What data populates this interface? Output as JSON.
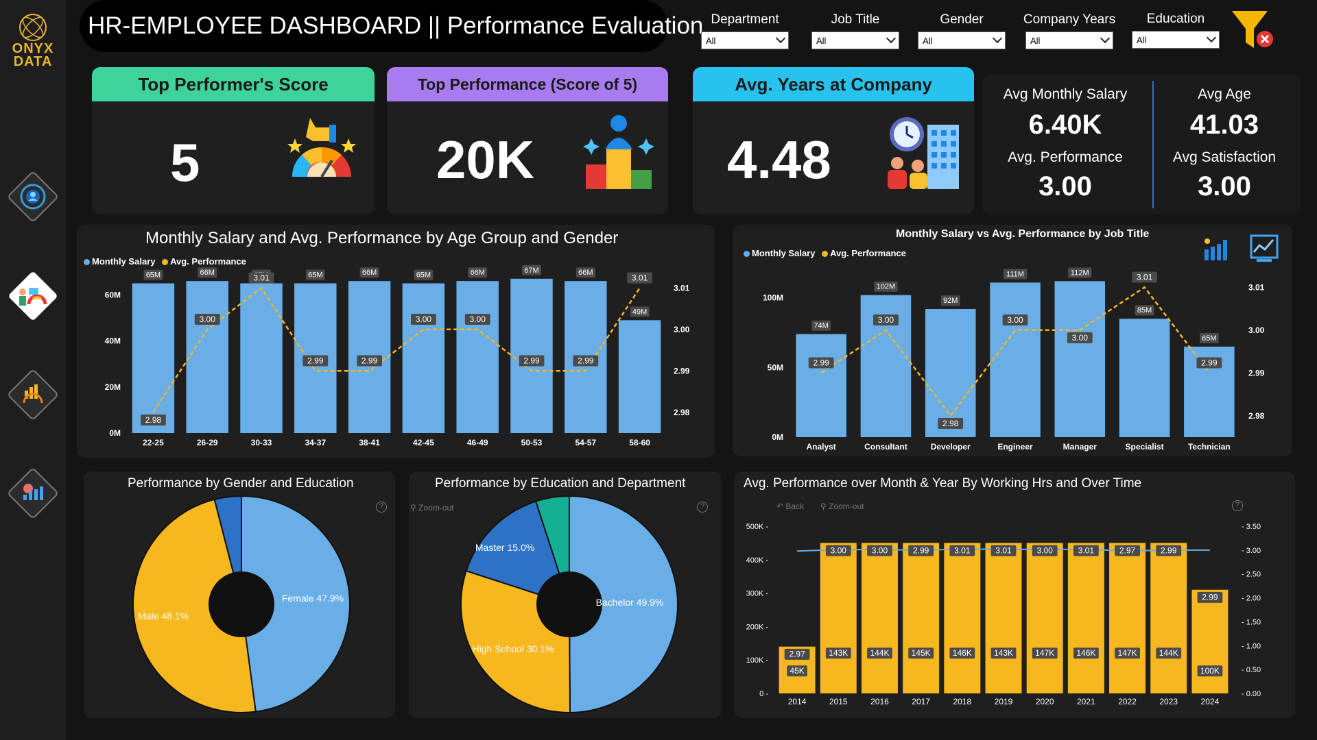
{
  "brand": {
    "line1": "ONYX",
    "line2": "DATA"
  },
  "title": "HR-EMPLOYEE DASHBOARD || Performance Evaluation",
  "filters": [
    {
      "label": "Department",
      "value": "All"
    },
    {
      "label": "Job Title",
      "value": "All"
    },
    {
      "label": "Gender",
      "value": "All"
    },
    {
      "label": "Company Years",
      "value": "All"
    },
    {
      "label": "Education",
      "value": "All"
    }
  ],
  "kpis": {
    "top_score": {
      "label": "Top Performer's Score",
      "value": "5",
      "color": "#3ed39b"
    },
    "top_perf": {
      "label": "Top Performance (Score of 5)",
      "value": "20K",
      "color": "#a87cf0"
    },
    "avg_years": {
      "label": "Avg. Years at Company",
      "value": "4.48",
      "color": "#27c3ee"
    }
  },
  "stats": {
    "salary": {
      "label": "Avg Monthly Salary",
      "value": "6.40K"
    },
    "age": {
      "label": "Avg Age",
      "value": "41.03"
    },
    "performance": {
      "label": "Avg. Performance",
      "value": "3.00"
    },
    "satisfaction": {
      "label": "Avg Satisfaction",
      "value": "3.00"
    }
  },
  "controls": {
    "zoom_out": "Zoom-out",
    "back": "Back",
    "help": "?"
  },
  "colors": {
    "blue": "#6aaee8",
    "yellow": "#f7b71e",
    "dark_blue": "#2d72c4",
    "teal": "#13b096"
  },
  "chart_data": [
    {
      "type": "bar",
      "title": "Monthly Salary and Avg. Performance by Age Group and Gender",
      "legend": [
        "Monthly Salary",
        "Avg. Performance"
      ],
      "categories": [
        "22-25",
        "26-29",
        "30-33",
        "34-37",
        "38-41",
        "42-45",
        "46-49",
        "50-53",
        "54-57",
        "58-60"
      ],
      "series": [
        {
          "name": "Monthly Salary",
          "type": "bar",
          "values": [
            65,
            66,
            65,
            65,
            66,
            65,
            66,
            67,
            66,
            49
          ],
          "labels": [
            "65M",
            "66M",
            "65M",
            "65M",
            "66M",
            "65M",
            "66M",
            "67M",
            "66M",
            "49M"
          ]
        },
        {
          "name": "Avg. Performance",
          "type": "line",
          "values": [
            2.98,
            3.0,
            3.01,
            2.99,
            2.99,
            3.0,
            3.0,
            2.99,
            2.99,
            3.01
          ],
          "labels": [
            "2.98",
            "3.00",
            "3.01",
            "2.99",
            "2.99",
            "3.00",
            "3.00",
            "2.99",
            "2.99",
            "3.01"
          ]
        }
      ],
      "y_ticks": [
        "0M",
        "20M",
        "40M",
        "60M"
      ],
      "y2_ticks": [
        "2.98",
        "2.99",
        "3.00",
        "3.01"
      ],
      "ylim": [
        0,
        72
      ],
      "y2lim": [
        2.975,
        3.015
      ]
    },
    {
      "type": "bar",
      "title": "Monthly Salary vs Avg. Performance by Job Title",
      "legend": [
        "Monthly Salary",
        "Avg. Performance"
      ],
      "categories": [
        "Analyst",
        "Consultant",
        "Developer",
        "Engineer",
        "Manager",
        "Specialist",
        "Technician"
      ],
      "series": [
        {
          "name": "Monthly Salary",
          "type": "bar",
          "values": [
            74,
            102,
            92,
            111,
            112,
            85,
            65
          ],
          "labels": [
            "74M",
            "102M",
            "92M",
            "111M",
            "112M",
            "85M",
            "65M"
          ]
        },
        {
          "name": "Avg. Performance",
          "type": "line",
          "values": [
            2.99,
            3.0,
            2.98,
            3.0,
            3.0,
            3.01,
            2.99
          ],
          "labels": [
            "2.99",
            "3.00",
            "2.98",
            "3.00",
            "3.00",
            "3.01",
            "2.99"
          ]
        }
      ],
      "y_ticks": [
        "0M",
        "50M",
        "100M"
      ],
      "y2_ticks": [
        "2.98",
        "2.99",
        "3.00",
        "3.01"
      ],
      "ylim": [
        0,
        123
      ],
      "y2lim": [
        2.975,
        3.015
      ]
    },
    {
      "type": "pie",
      "title": "Performance by Gender and Education",
      "slices": [
        {
          "label": "Female 47.9%",
          "value": 47.9,
          "color": "#6aaee8"
        },
        {
          "label": "Male 48.1%",
          "value": 48.1,
          "color": "#f7b71e"
        },
        {
          "label": "",
          "value": 4.0,
          "color": "#2d72c4"
        }
      ]
    },
    {
      "type": "pie",
      "title": "Performance by Education and Department",
      "slices": [
        {
          "label": "Bachelor 49.9%",
          "value": 49.9,
          "color": "#6aaee8"
        },
        {
          "label": "High School 30.1%",
          "value": 30.1,
          "color": "#f7b71e"
        },
        {
          "label": "Master 15.0%",
          "value": 15.0,
          "color": "#2d72c4"
        },
        {
          "label": "",
          "value": 5.0,
          "color": "#13b096"
        }
      ]
    },
    {
      "type": "bar",
      "title": "Avg. Performance over Month & Year By Working Hrs and Over Time",
      "categories": [
        "2014",
        "2015",
        "2016",
        "2017",
        "2018",
        "2019",
        "2020",
        "2021",
        "2022",
        "2023",
        "2024"
      ],
      "series": [
        {
          "name": "Working Hrs",
          "type": "bar",
          "values": [
            45,
            143,
            144,
            145,
            146,
            143,
            147,
            146,
            147,
            144,
            100
          ],
          "labels": [
            "45K",
            "143K",
            "144K",
            "145K",
            "146K",
            "143K",
            "147K",
            "146K",
            "147K",
            "144K",
            "100K"
          ],
          "top_values": [
            140,
            450,
            450,
            450,
            450,
            450,
            450,
            450,
            450,
            450,
            310
          ]
        },
        {
          "name": "Performance",
          "type": "line",
          "values": [
            2.97,
            3.0,
            3.0,
            2.99,
            3.01,
            3.01,
            3.0,
            3.01,
            2.97,
            2.99,
            2.99
          ],
          "labels": [
            "2.97",
            "3.00",
            "3.00",
            "2.99",
            "3.01",
            "3.01",
            "3.00",
            "3.01",
            "2.97",
            "2.99",
            "2.99"
          ]
        }
      ],
      "y_ticks": [
        "0",
        "100K",
        "200K",
        "300K",
        "400K",
        "500K"
      ],
      "y2_ticks": [
        "0.00",
        "0.50",
        "1.00",
        "1.50",
        "2.00",
        "2.50",
        "3.00",
        "3.50"
      ],
      "ylim": [
        0,
        500
      ],
      "y2lim": [
        0,
        3.5
      ]
    }
  ]
}
